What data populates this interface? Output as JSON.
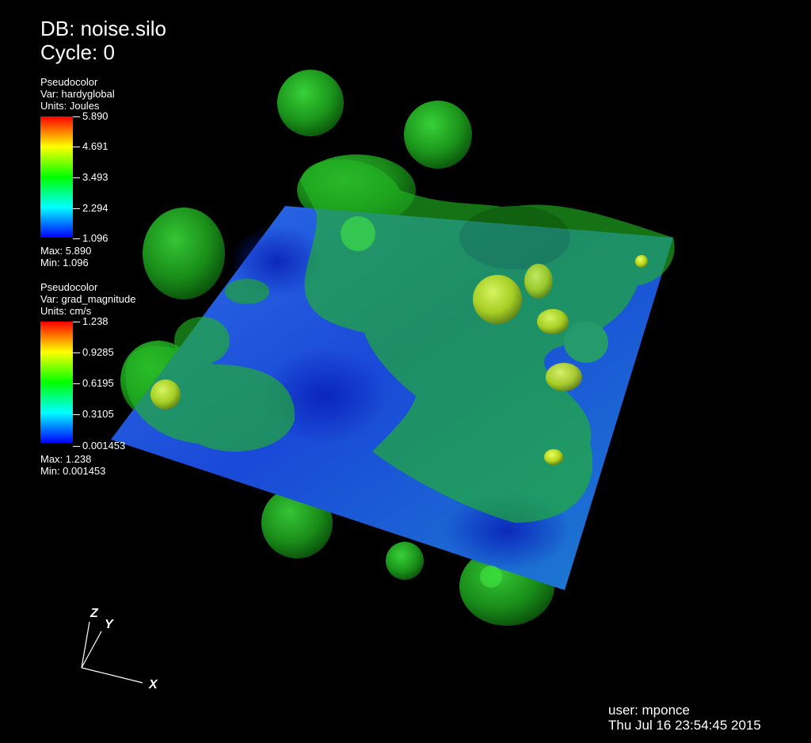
{
  "header": {
    "db": "DB: noise.silo",
    "cycle": "Cycle: 0"
  },
  "legends": [
    {
      "plot": "Pseudocolor",
      "var": "Var: hardyglobal",
      "units": "Units: Joules",
      "ticks": [
        "5.890",
        "4.691",
        "3.493",
        "2.294",
        "1.096"
      ],
      "max": "Max:  5.890",
      "min": "Min:  1.096"
    },
    {
      "plot": "Pseudocolor",
      "var": "Var: grad_magnitude",
      "units": "Units: cm/s",
      "ticks": [
        "1.238",
        "0.9285",
        "0.6195",
        "0.3105",
        "0.001453"
      ],
      "max": "Max:  1.238",
      "min": "Min:  0.001453"
    }
  ],
  "triad": {
    "x": "X",
    "y": "Y",
    "z": "Z"
  },
  "footer": {
    "user": "user: mponce",
    "date": "Thu Jul 16 23:54:45 2015"
  },
  "colors": {
    "background": "#000000",
    "isosurface": "#22b822",
    "blob_highlight": "#c8e61e",
    "slice_blue": "#1f52e0"
  }
}
